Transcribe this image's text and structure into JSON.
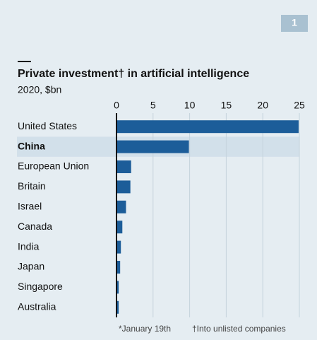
{
  "badge": "1",
  "chart_data": {
    "type": "bar",
    "orientation": "horizontal",
    "title": "Private investment† in artificial intelligence",
    "subtitle": "2020, $bn",
    "categories": [
      "United States",
      "China",
      "European Union",
      "Britain",
      "Israel",
      "Canada",
      "India",
      "Japan",
      "Singapore",
      "Australia"
    ],
    "values": [
      24.9,
      9.9,
      2.0,
      1.9,
      1.3,
      0.8,
      0.6,
      0.5,
      0.3,
      0.3
    ],
    "color": "#1c5d99",
    "highlight": "China",
    "xlim": [
      0,
      25
    ],
    "xticks": [
      0,
      5,
      10,
      15,
      20,
      25
    ],
    "grid": true,
    "footnotes": [
      "*January 19th",
      "†Into unlisted companies"
    ]
  }
}
